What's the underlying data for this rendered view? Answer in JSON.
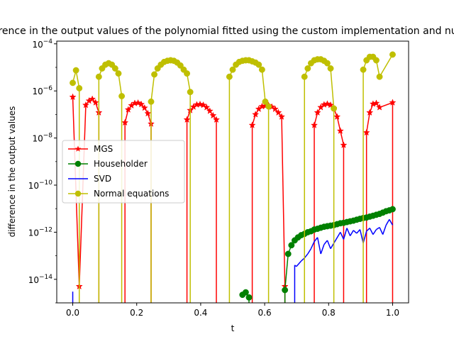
{
  "chart_data": {
    "type": "line",
    "title": "Difference in the output values of the polynomial fitted using the custom implementation and numpy",
    "xlabel": "t",
    "ylabel": "difference in the output values",
    "yscale": "log",
    "xlim": [
      -0.05,
      1.05
    ],
    "ylim": [
      1e-15,
      0.00013
    ],
    "x_ticks": [
      "0.0",
      "0.2",
      "0.4",
      "0.6",
      "0.8",
      "1.0"
    ],
    "x_tick_values": [
      0.0,
      0.2,
      0.4,
      0.6,
      0.8,
      1.0
    ],
    "y_ticks": [
      "10^-14",
      "10^-12",
      "10^-10",
      "10^-8",
      "10^-6",
      "10^-4"
    ],
    "y_tick_values": [
      1e-14,
      1e-12,
      1e-10,
      1e-08,
      1e-06,
      0.0001
    ],
    "grid": false,
    "legend_position": "center-left",
    "series": [
      {
        "name": "MGS",
        "color": "#ff0000",
        "marker": "star",
        "x": [
          0.0,
          0.0204,
          0.0408,
          0.051,
          0.0612,
          0.0714,
          0.0816,
          0.1633,
          0.1735,
          0.1837,
          0.1939,
          0.2041,
          0.2143,
          0.2245,
          0.2347,
          0.2449,
          0.3571,
          0.3673,
          0.3776,
          0.3878,
          0.398,
          0.4082,
          0.4184,
          0.4286,
          0.4388,
          0.449,
          0.5612,
          0.5714,
          0.5816,
          0.5918,
          0.602,
          0.6122,
          0.6224,
          0.6327,
          0.6429,
          0.6531,
          0.6633,
          0.7551,
          0.7653,
          0.7755,
          0.7857,
          0.7959,
          0.8061,
          0.8163,
          0.8265,
          0.8367,
          0.8469,
          0.9184,
          0.9286,
          0.9388,
          0.949,
          0.9592,
          1.0
        ],
        "y": [
          5.5e-07,
          5e-15,
          2.5e-07,
          3.8e-07,
          4.5e-07,
          3.2e-07,
          1.2e-07,
          4.5e-08,
          1.6e-07,
          2.4e-07,
          3e-07,
          3.1e-07,
          2.7e-07,
          1.9e-07,
          1.1e-07,
          4e-08,
          6e-08,
          1.5e-07,
          2.1e-07,
          2.6e-07,
          2.7e-07,
          2.5e-07,
          2e-07,
          1.4e-07,
          9e-08,
          6e-08,
          3.5e-08,
          1e-07,
          1.7e-07,
          2.2e-07,
          2.3e-07,
          2.4e-07,
          2.1e-07,
          1.7e-07,
          1.2e-07,
          8e-08,
          5e-15,
          3.5e-08,
          1.2e-07,
          2e-07,
          2.6e-07,
          2.8e-07,
          2.5e-07,
          1.8e-07,
          8e-08,
          2e-08,
          5e-09,
          1.7e-08,
          1.2e-07,
          2.8e-07,
          3e-07,
          2e-07,
          3.2e-07
        ]
      },
      {
        "name": "Householder",
        "color": "#008000",
        "marker": "circle",
        "x": [
          0.5306,
          0.5408,
          0.551,
          0.6633,
          0.6735,
          0.6837,
          0.6939,
          0.7041,
          0.7143,
          0.7245,
          0.7347,
          0.7449,
          0.7551,
          0.7653,
          0.7755,
          0.7857,
          0.7959,
          0.8061,
          0.8163,
          0.8265,
          0.8367,
          0.8469,
          0.8571,
          0.8673,
          0.8776,
          0.8878,
          0.898,
          0.9082,
          0.9184,
          0.9286,
          0.9388,
          0.949,
          0.9592,
          0.9694,
          0.9796,
          0.9898,
          1.0
        ],
        "y": [
          2.2e-15,
          2.8e-15,
          1.7e-15,
          3.5e-15,
          1.2e-13,
          2.8e-13,
          4.5e-13,
          6e-13,
          7.5e-13,
          8.5e-13,
          1e-12,
          1.1e-12,
          1.3e-12,
          1.4e-12,
          1.55e-12,
          1.7e-12,
          1.8e-12,
          1.9e-12,
          2e-12,
          2.2e-12,
          2.4e-12,
          2.5e-12,
          2.7e-12,
          2.9e-12,
          3.1e-12,
          3.4e-12,
          3.7e-12,
          4e-12,
          4.2e-12,
          4.6e-12,
          5e-12,
          5.5e-12,
          6e-12,
          6.8e-12,
          7.8e-12,
          8.5e-12,
          9.5e-12
        ]
      },
      {
        "name": "SVD",
        "color": "#0000ff",
        "marker": "none",
        "x": [
          0.0,
          0.6939,
          0.699,
          0.7143,
          0.7245,
          0.7347,
          0.7449,
          0.7551,
          0.7653,
          0.7755,
          0.7857,
          0.7959,
          0.8061,
          0.8367,
          0.8469,
          0.8571,
          0.8673,
          0.8776,
          0.8878,
          0.898,
          0.9082,
          0.9184,
          0.9286,
          0.9388,
          0.949,
          0.9592,
          0.9694,
          0.9796,
          0.9898,
          1.0
        ],
        "y": [
          3e-15,
          4e-14,
          3.5e-14,
          6e-14,
          8e-14,
          1.2e-13,
          2e-13,
          4e-13,
          6e-13,
          1.2e-13,
          3e-13,
          4.5e-13,
          2e-13,
          1e-12,
          5e-13,
          1.5e-12,
          7e-13,
          1.2e-12,
          9e-13,
          1.3e-12,
          3.5e-13,
          1.1e-12,
          1.5e-12,
          8e-13,
          1.3e-12,
          1.6e-12,
          8e-13,
          2e-12,
          3.5e-12,
          2e-12
        ]
      },
      {
        "name": "Normal equations",
        "color": "#bfbf00",
        "marker": "circle",
        "x": [
          0.0,
          0.0102,
          0.0204,
          0.0816,
          0.0918,
          0.102,
          0.1122,
          0.1224,
          0.1327,
          0.1429,
          0.1531,
          0.2449,
          0.2551,
          0.2653,
          0.2755,
          0.2857,
          0.2959,
          0.3061,
          0.3163,
          0.3265,
          0.3367,
          0.3469,
          0.3571,
          0.3673,
          0.4898,
          0.5,
          0.5102,
          0.5204,
          0.5306,
          0.5408,
          0.551,
          0.5612,
          0.5714,
          0.5816,
          0.5918,
          0.602,
          0.6122,
          0.7245,
          0.7347,
          0.7449,
          0.7551,
          0.7653,
          0.7755,
          0.7857,
          0.7959,
          0.8061,
          0.8163,
          0.9082,
          0.9184,
          0.9286,
          0.9388,
          0.949,
          0.9592,
          1.0
        ],
        "y": [
          2.2e-06,
          7.5e-06,
          1.3e-06,
          4e-06,
          9e-06,
          1.3e-05,
          1.5e-05,
          1.3e-05,
          9e-06,
          5.5e-06,
          6e-07,
          3.5e-07,
          5e-06,
          9e-06,
          1.3e-05,
          1.7e-05,
          1.9e-05,
          2e-05,
          1.9e-05,
          1.6e-05,
          1.2e-05,
          8e-06,
          5.5e-06,
          9e-07,
          4e-06,
          8e-06,
          1.3e-05,
          1.7e-05,
          1.9e-05,
          2e-05,
          2e-05,
          1.8e-05,
          1.6e-05,
          1.3e-05,
          8e-06,
          3.5e-07,
          2.2e-07,
          4e-06,
          9e-06,
          1.5e-05,
          2e-05,
          2.2e-05,
          2.2e-05,
          1.9e-05,
          1.5e-05,
          9e-06,
          1.8e-07,
          8e-06,
          2e-05,
          2.8e-05,
          2.8e-05,
          2e-05,
          4e-06,
          3.5e-05
        ]
      }
    ]
  }
}
